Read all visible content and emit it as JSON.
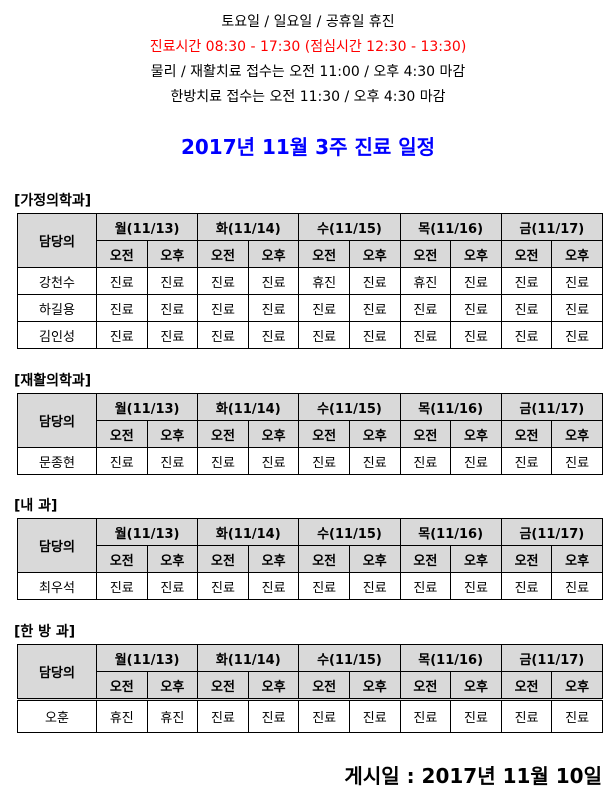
{
  "notice": {
    "line1": "토요일 / 일요일 / 공휴일 휴진",
    "line2": "진료시간 08:30 - 17:30 (점심시간 12:30 - 13:30)",
    "line3": "물리 /  재활치료 접수는 오전 11:00 / 오후 4:30 마감",
    "line4": "한방치료 접수는 오전 11:30 / 오후 4:30 마감",
    "accent_color": "#ff0000"
  },
  "title": "2017년 11월 3주 진료 일정",
  "title_color": "#0000ff",
  "header": {
    "doctor": "담당의",
    "days": [
      "월(11/13)",
      "화(11/14)",
      "수(11/15)",
      "목(11/16)",
      "금(11/17)"
    ],
    "am": "오전",
    "pm": "오후",
    "header_bg": "#d9d9d9"
  },
  "departments": [
    {
      "label": "[가정의학과]",
      "doctors": [
        {
          "name": "강천수",
          "slots": [
            "진료",
            "진료",
            "진료",
            "진료",
            "휴진",
            "진료",
            "휴진",
            "진료",
            "진료",
            "진료"
          ]
        },
        {
          "name": "하길용",
          "slots": [
            "진료",
            "진료",
            "진료",
            "진료",
            "진료",
            "진료",
            "진료",
            "진료",
            "진료",
            "진료"
          ]
        },
        {
          "name": "김인성",
          "slots": [
            "진료",
            "진료",
            "진료",
            "진료",
            "진료",
            "진료",
            "진료",
            "진료",
            "진료",
            "진료"
          ]
        }
      ]
    },
    {
      "label": "[재활의학과]",
      "doctors": [
        {
          "name": "문종현",
          "slots": [
            "진료",
            "진료",
            "진료",
            "진료",
            "진료",
            "진료",
            "진료",
            "진료",
            "진료",
            "진료"
          ]
        }
      ]
    },
    {
      "label": "[내        과]",
      "doctors": [
        {
          "name": "최우석",
          "slots": [
            "진료",
            "진료",
            "진료",
            "진료",
            "진료",
            "진료",
            "진료",
            "진료",
            "진료",
            "진료"
          ]
        }
      ]
    },
    {
      "label": "[한   방   과]",
      "doctors": [
        {
          "name": "오훈",
          "slots": [
            "휴진",
            "휴진",
            "진료",
            "진료",
            "진료",
            "진료",
            "진료",
            "진료",
            "진료",
            "진료"
          ]
        }
      ]
    }
  ],
  "footer": "게시일 : 2017년 11월 10일"
}
